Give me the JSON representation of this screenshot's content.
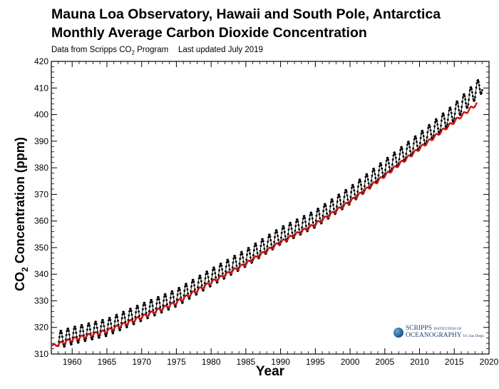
{
  "header": {
    "title_line1": "Mauna Loa Observatory, Hawaii and South Pole, Antarctica",
    "title_line2": "Monthly Average Carbon Dioxide Concentration",
    "source_prefix": "Data from Scripps CO",
    "source_sub": "2",
    "source_suffix": " Program",
    "updated": "Last updated July 2019"
  },
  "logo": {
    "line1": "SCRIPPS",
    "line1_small": "INSTITUTION OF",
    "line2": "OCEANOGRAPHY",
    "line2_small": "UC San Diego"
  },
  "chart_data": {
    "type": "line",
    "xlabel": "Year",
    "ylabel_prefix": "CO",
    "ylabel_sub": "2",
    "ylabel_suffix": " Concentration (ppm)",
    "xlim": [
      1957,
      2020
    ],
    "ylim": [
      310,
      420
    ],
    "x_ticks": [
      1960,
      1965,
      1970,
      1975,
      1980,
      1985,
      1990,
      1995,
      2000,
      2005,
      2010,
      2015,
      2020
    ],
    "y_ticks": [
      310,
      320,
      330,
      340,
      350,
      360,
      370,
      380,
      390,
      400,
      410,
      420
    ],
    "grid": false,
    "series": [
      {
        "color": "#000000",
        "style": "line with dot markers (monthly, seasonal cycle)",
        "annual_mean": {
          "x": [
            1958,
            1960,
            1965,
            1970,
            1975,
            1980,
            1985,
            1990,
            1995,
            2000,
            2005,
            2010,
            2015,
            2019
          ],
          "y": [
            315.3,
            316.9,
            320.0,
            325.7,
            331.1,
            338.8,
            346.1,
            354.4,
            360.8,
            369.6,
            379.8,
            389.9,
            400.8,
            411.4
          ]
        },
        "seasonal_amplitude_ppm": 6.5
      },
      {
        "color": "#c81414",
        "style": "line with dot markers (monthly)",
        "annual_mean": {
          "x": [
            1957.2,
            1960,
            1965,
            1970,
            1975,
            1980,
            1985,
            1990,
            1995,
            2000,
            2005,
            2010,
            2015,
            2018.2
          ],
          "y": [
            313.0,
            315.5,
            318.7,
            323.9,
            329.4,
            336.9,
            343.9,
            352.0,
            358.7,
            367.3,
            377.1,
            387.3,
            397.4,
            404.0
          ]
        },
        "seasonal_amplitude_ppm": 1.2
      }
    ]
  }
}
